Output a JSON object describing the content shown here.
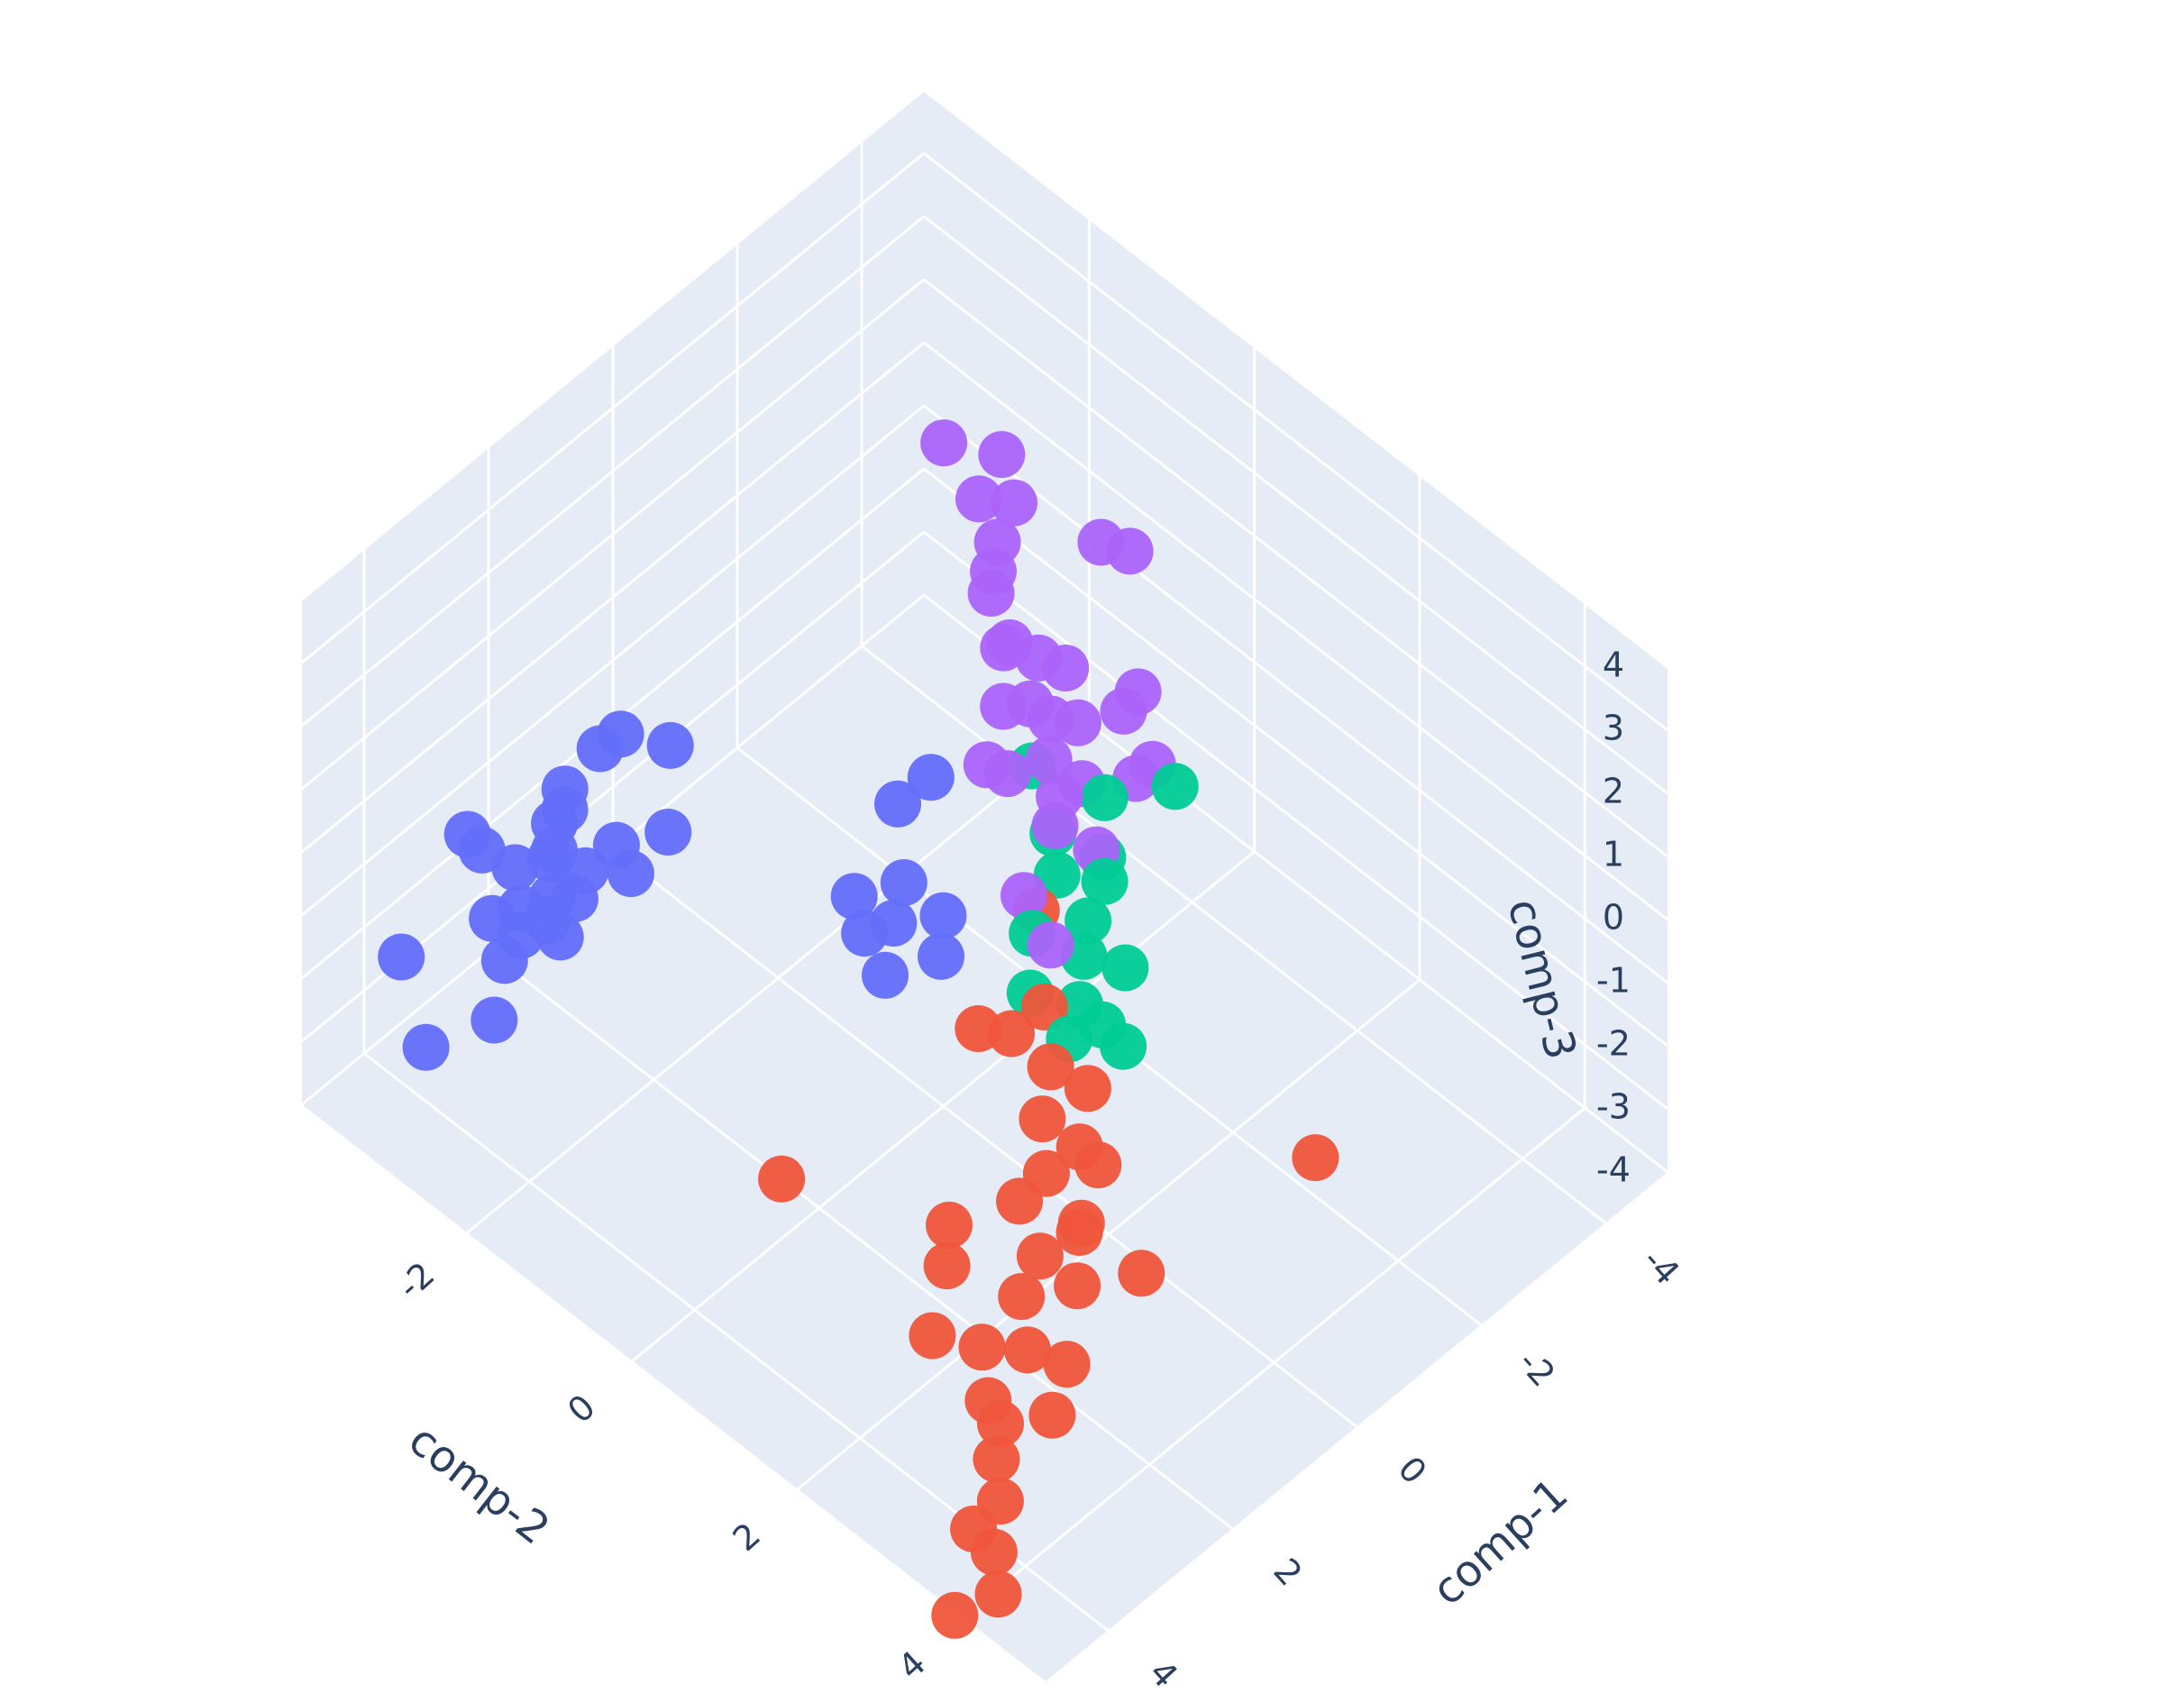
{
  "chart_data": {
    "type": "scatter",
    "subtype": "3d-scatter",
    "title": "",
    "axes": {
      "x": {
        "label": "comp-1",
        "ticks": [
          "-4",
          "-2",
          "0",
          "2",
          "4"
        ],
        "range": [
          -5,
          5
        ]
      },
      "y": {
        "label": "comp-2",
        "ticks": [
          "-2",
          "0",
          "2",
          "4"
        ],
        "range": [
          -4,
          5
        ]
      },
      "z": {
        "label": "comp-3",
        "ticks": [
          "4",
          "3",
          "2",
          "1",
          "0",
          "-1",
          "-2",
          "-3",
          "-4"
        ],
        "range": [
          -4,
          4
        ]
      }
    },
    "grid": true,
    "legend": "none",
    "colors": {
      "pane": "#e5ecf6",
      "grid": "#ffffff",
      "tick_text": "#2a3f5f"
    },
    "series": [
      {
        "color": "#636efa",
        "points": [
          [
            2.4,
            -2.1,
            1.7
          ],
          [
            2.9,
            -2.4,
            0.6
          ],
          [
            3.1,
            -2.0,
            0.2
          ],
          [
            3.4,
            -1.9,
            0.1
          ],
          [
            3.2,
            -2.3,
            0.3
          ],
          [
            2.6,
            -2.0,
            0.2
          ],
          [
            3.0,
            -2.5,
            -0.2
          ],
          [
            3.5,
            -2.1,
            0.0
          ],
          [
            2.8,
            -2.6,
            0.1
          ],
          [
            3.6,
            -2.4,
            -0.4
          ],
          [
            3.3,
            -2.7,
            -0.3
          ],
          [
            2.5,
            -2.7,
            0.3
          ],
          [
            3.7,
            -2.0,
            -0.1
          ],
          [
            2.9,
            -1.6,
            0.4
          ],
          [
            3.8,
            -2.6,
            -0.6
          ],
          [
            4.0,
            -2.3,
            -0.8
          ],
          [
            3.9,
            -1.7,
            0.1
          ],
          [
            2.2,
            -2.5,
            0.9
          ],
          [
            2.0,
            -1.8,
            1.5
          ],
          [
            2.7,
            -1.3,
            1.2
          ],
          [
            3.4,
            -3.2,
            -0.2
          ],
          [
            4.3,
            -2.2,
            -1.4
          ],
          [
            4.6,
            -2.8,
            -2.2
          ],
          [
            4.2,
            -3.4,
            -1.7
          ],
          [
            1.0,
            0.2,
            1.8
          ],
          [
            1.3,
            0.5,
            1.1
          ],
          [
            1.6,
            0.6,
            0.8
          ],
          [
            1.2,
            0.9,
            0.9
          ],
          [
            1.8,
            0.4,
            0.6
          ],
          [
            2.0,
            0.8,
            0.5
          ],
          [
            1.5,
            1.1,
            0.7
          ],
          [
            0.6,
            0.3,
            2.0
          ],
          [
            1.7,
            0.2,
            0.9
          ],
          [
            3.7,
            -2.8,
            0.2
          ],
          [
            4.0,
            -2.1,
            -0.2
          ]
        ]
      },
      {
        "color": "#ab63fa",
        "points": [
          [
            -1.6,
            -1.2,
            4.0
          ],
          [
            -2.0,
            -0.8,
            3.9
          ],
          [
            -1.5,
            -0.7,
            3.7
          ],
          [
            -1.8,
            -0.5,
            3.6
          ],
          [
            -1.4,
            -0.4,
            3.4
          ],
          [
            -1.2,
            -0.3,
            3.2
          ],
          [
            -0.9,
            -0.1,
            3.3
          ],
          [
            -2.4,
            0.1,
            3.1
          ],
          [
            -2.6,
            0.3,
            3.0
          ],
          [
            -0.7,
            0.2,
            2.9
          ],
          [
            -1.0,
            0.4,
            2.7
          ],
          [
            -0.3,
            0.5,
            2.6
          ],
          [
            -0.6,
            0.6,
            2.5
          ],
          [
            -1.3,
            0.5,
            2.4
          ],
          [
            -0.8,
            0.7,
            2.2
          ],
          [
            -1.1,
            0.8,
            2.0
          ],
          [
            -0.5,
            0.9,
            2.0
          ],
          [
            -1.7,
            0.9,
            1.8
          ],
          [
            -0.4,
            1.1,
            1.7
          ],
          [
            -0.2,
            1.2,
            1.5
          ],
          [
            -0.9,
            1.0,
            1.4
          ],
          [
            -1.5,
            1.2,
            1.2
          ],
          [
            -0.1,
            0.7,
            1.9
          ],
          [
            -0.6,
            1.4,
            1.0
          ],
          [
            0.3,
            1.2,
            0.8
          ],
          [
            -2.2,
            0.7,
            1.5
          ],
          [
            -1.9,
            1.1,
            1.0
          ],
          [
            0.1,
            0.6,
            2.1
          ],
          [
            -0.8,
            0.2,
            2.9
          ],
          [
            0.4,
            1.6,
            0.5
          ]
        ]
      },
      {
        "color": "#00cc96",
        "points": [
          [
            -0.5,
            0.7,
            1.7
          ],
          [
            -0.3,
            1.1,
            1.2
          ],
          [
            -0.1,
            1.3,
            0.9
          ],
          [
            -0.6,
            1.5,
            0.6
          ],
          [
            -0.2,
            1.6,
            0.4
          ],
          [
            0.0,
            1.7,
            0.1
          ],
          [
            -0.4,
            1.9,
            -0.2
          ],
          [
            0.2,
            1.8,
            -0.4
          ],
          [
            -0.7,
            1.4,
            0.8
          ],
          [
            0.3,
            1.3,
            0.3
          ],
          [
            -1.6,
            1.6,
            1.4
          ],
          [
            0.5,
            1.9,
            -0.6
          ],
          [
            -0.1,
            2.1,
            -1.0
          ],
          [
            0.6,
            1.5,
            -0.2
          ],
          [
            -1.0,
            1.2,
            1.3
          ],
          [
            0.1,
            2.0,
            -0.6
          ]
        ]
      },
      {
        "color": "#ef553b",
        "points": [
          [
            0.1,
            1.2,
            0.4
          ],
          [
            0.5,
            1.6,
            -0.4
          ],
          [
            0.8,
            1.9,
            -0.8
          ],
          [
            1.2,
            2.1,
            -1.1
          ],
          [
            1.0,
            2.4,
            -1.4
          ],
          [
            1.4,
            2.3,
            -1.6
          ],
          [
            1.7,
            2.2,
            -1.9
          ],
          [
            1.9,
            2.6,
            -2.2
          ],
          [
            1.5,
            2.8,
            -1.8
          ],
          [
            2.2,
            2.6,
            -2.6
          ],
          [
            2.5,
            2.9,
            -2.9
          ],
          [
            2.7,
            2.5,
            -3.1
          ],
          [
            3.0,
            2.8,
            -3.4
          ],
          [
            3.2,
            3.1,
            -3.3
          ],
          [
            2.4,
            3.3,
            -2.8
          ],
          [
            2.9,
            3.5,
            -3.0
          ],
          [
            3.4,
            3.2,
            -3.6
          ],
          [
            3.6,
            3.4,
            -3.9
          ],
          [
            3.9,
            3.3,
            -4.2
          ],
          [
            4.1,
            3.7,
            -4.0
          ],
          [
            4.3,
            3.9,
            -4.3
          ],
          [
            4.6,
            3.6,
            -4.7
          ],
          [
            0.6,
            2.2,
            -1.0
          ],
          [
            1.1,
            2.7,
            -1.3
          ],
          [
            -0.8,
            3.9,
            -1.5
          ],
          [
            3.4,
            0.6,
            -1.8
          ],
          [
            1.8,
            3.0,
            -1.5
          ],
          [
            2.1,
            3.2,
            -1.9
          ],
          [
            2.6,
            2.0,
            -2.4
          ],
          [
            0.9,
            1.5,
            -0.6
          ],
          [
            1.3,
            1.4,
            -0.3
          ],
          [
            3.1,
            2.2,
            -2.9
          ],
          [
            1.6,
            3.6,
            -1.7
          ],
          [
            2.3,
            1.8,
            -2.2
          ]
        ]
      }
    ]
  }
}
